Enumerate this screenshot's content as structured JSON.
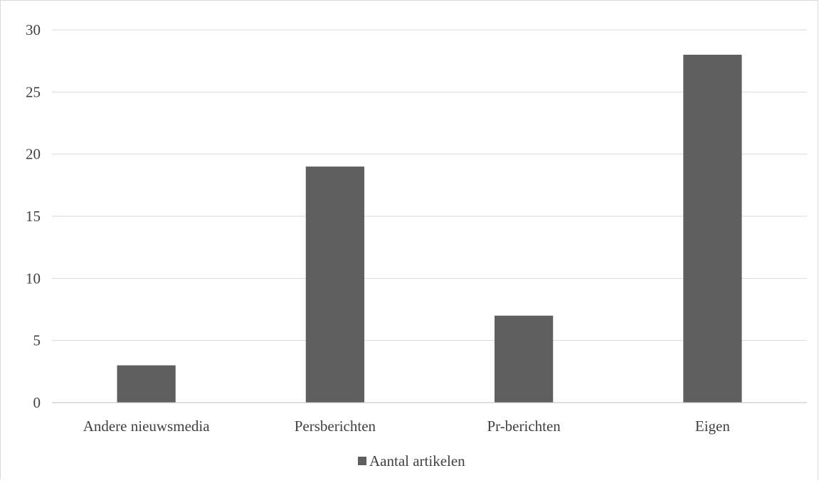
{
  "chart_data": {
    "type": "bar",
    "title": "",
    "xlabel": "",
    "ylabel": "",
    "categories": [
      "Andere nieuwsmedia",
      "Persberichten",
      "Pr-berichten",
      "Eigen"
    ],
    "series": [
      {
        "name": "Aantal artikelen",
        "values": [
          3,
          19,
          7,
          28
        ],
        "color": "#5f5f5f"
      }
    ],
    "ylim": [
      0,
      30
    ],
    "yticks": [
      0,
      5,
      10,
      15,
      20,
      25,
      30
    ],
    "ytick_labels": [
      "0",
      "5",
      "10",
      "15",
      "20",
      "25",
      "30"
    ],
    "grid": true,
    "legend_position": "bottom-center",
    "colors": {
      "bar": "#5f5f5f",
      "grid": "#d9d9d9",
      "axis": "#bfbfbf",
      "text": "#404040",
      "frame": "#d9d9d9"
    }
  }
}
